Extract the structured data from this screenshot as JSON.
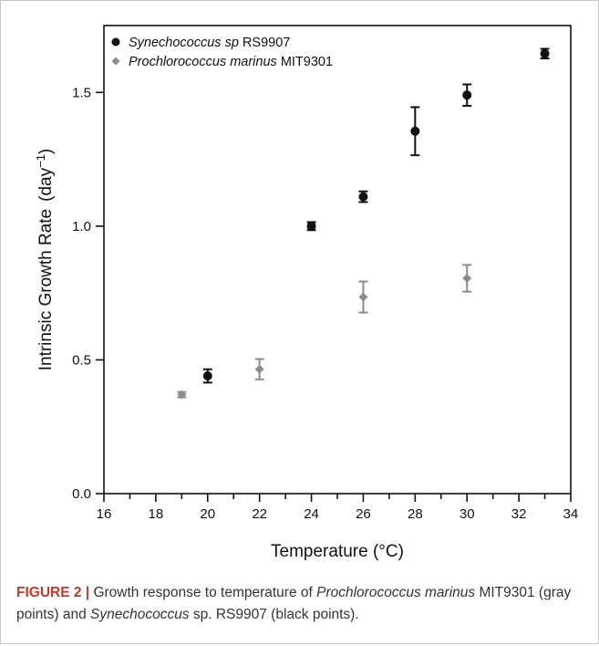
{
  "chart_data": {
    "type": "scatter",
    "xlabel": "Temperature (°C)",
    "ylabel": "Intrinsic Growth Rate",
    "ylabel_unit": "(day",
    "ylabel_exp": "−1",
    "ylabel_close": ")",
    "xlim": [
      16,
      34
    ],
    "ylim": [
      0.0,
      1.75
    ],
    "xticks": [
      16,
      18,
      20,
      22,
      24,
      26,
      28,
      30,
      32,
      34
    ],
    "yticks": [
      0.0,
      0.5,
      1.0,
      1.5
    ],
    "grid": false,
    "legend_position": "top-left",
    "series": [
      {
        "name_italic": "Synechococcus sp",
        "name_rest": " RS9907",
        "color": "#111111",
        "marker": "circle",
        "points": [
          {
            "x": 20,
            "y": 0.44,
            "err": 0.025
          },
          {
            "x": 24,
            "y": 1.0,
            "err": 0.015
          },
          {
            "x": 26,
            "y": 1.11,
            "err": 0.02
          },
          {
            "x": 28,
            "y": 1.355,
            "err": 0.09
          },
          {
            "x": 30,
            "y": 1.49,
            "err": 0.04
          },
          {
            "x": 33,
            "y": 1.645,
            "err": 0.018
          }
        ]
      },
      {
        "name_italic": "Prochlorococcus marinus",
        "name_rest": " MIT9301",
        "color": "#8c8c8c",
        "marker": "diamond",
        "points": [
          {
            "x": 19,
            "y": 0.37,
            "err": 0.01
          },
          {
            "x": 22,
            "y": 0.465,
            "err": 0.038
          },
          {
            "x": 26,
            "y": 0.735,
            "err": 0.058
          },
          {
            "x": 30,
            "y": 0.805,
            "err": 0.05
          }
        ]
      }
    ]
  },
  "caption": {
    "label": "FIGURE 2 |",
    "text1": " Growth response to temperature of ",
    "italic1": "Prochlorococcus marinus",
    "text2": " MIT9301 (gray points) and ",
    "italic2": "Synechococcus",
    "text3": " sp. RS9907 (black points)."
  }
}
